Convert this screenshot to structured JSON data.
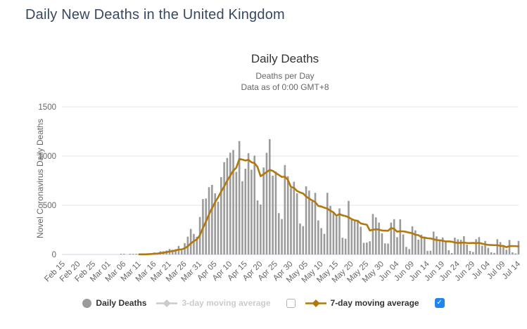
{
  "page": {
    "title": "Daily New Deaths in the United Kingdom"
  },
  "chart": {
    "title": "Daily Deaths",
    "subtitle_line1": "Deaths per Day",
    "subtitle_line2": "Data as of 0:00 GMT+8",
    "y_axis_title": "Novel Coronavirus Daily Deaths"
  },
  "colors": {
    "bar": "#9b9b9b",
    "ma7_line": "#b2770d",
    "disabled_legend": "#cbcbcb",
    "checkbox_checked": "#1f86f0",
    "gridline": "#e6e6e6",
    "axis_line": "#ccd6eb",
    "tick_text": "#666666"
  },
  "legend": {
    "items": [
      {
        "id": "daily-deaths",
        "label": "Daily Deaths",
        "marker": "circle",
        "color": "#9b9b9b",
        "enabled": true,
        "checkbox": "none"
      },
      {
        "id": "ma3",
        "label": "3-day moving average",
        "marker": "line-diamond",
        "color": "#cbcbcb",
        "enabled": false,
        "checkbox": "unchecked"
      },
      {
        "id": "ma7",
        "label": "7-day moving average",
        "marker": "line-diamond",
        "color": "#b2770d",
        "enabled": true,
        "checkbox": "checked"
      }
    ],
    "checkmark_glyph": "✓"
  },
  "chart_data": {
    "type": "bar",
    "title": "Daily Deaths",
    "subtitle": "Deaths per Day — Data as of 0:00 GMT+8",
    "xlabel": "",
    "ylabel": "Novel Coronavirus Daily Deaths",
    "x_start": "Feb 15",
    "x_end": "Jul 14",
    "x_tick_labels": [
      "Feb 15",
      "Feb 20",
      "Feb 25",
      "Mar 01",
      "Mar 06",
      "Mar 11",
      "Mar 16",
      "Mar 21",
      "Mar 26",
      "Mar 31",
      "Apr 05",
      "Apr 10",
      "Apr 15",
      "Apr 20",
      "Apr 25",
      "Apr 30",
      "May 05",
      "May 10",
      "May 15",
      "May 20",
      "May 25",
      "May 30",
      "Jun 04",
      "Jun 09",
      "Jun 14",
      "Jun 19",
      "Jun 24",
      "Jun 29",
      "Jul 04",
      "Jul 09",
      "Jul 14"
    ],
    "x_tick_step_days": 5,
    "y_ticks": [
      0,
      500,
      1000,
      1500
    ],
    "ylim": [
      0,
      1500
    ],
    "grid": true,
    "legend_position": "bottom",
    "series": [
      {
        "name": "Daily Deaths",
        "type": "bar",
        "color": "#9b9b9b",
        "values": [
          0,
          0,
          0,
          0,
          0,
          0,
          0,
          0,
          0,
          0,
          0,
          0,
          0,
          0,
          0,
          0,
          0,
          0,
          0,
          1,
          1,
          0,
          1,
          1,
          3,
          2,
          2,
          1,
          10,
          14,
          20,
          16,
          32,
          33,
          40,
          56,
          48,
          54,
          87,
          41,
          115,
          181,
          260,
          209,
          180,
          381,
          563,
          569,
          684,
          708,
          621,
          536,
          786,
          938,
          981,
          1034,
          1062,
          839,
          1152,
          744,
          872,
          1029,
          861,
          1005,
          549,
          508,
          884,
          1033,
          1172,
          801,
          843,
          420,
          360,
          909,
          795,
          674,
          739,
          621,
          315,
          288,
          693,
          649,
          539,
          626,
          346,
          268,
          210,
          627,
          494,
          428,
          384,
          468,
          170,
          160,
          545,
          363,
          338,
          351,
          282,
          118,
          121,
          134,
          412,
          377,
          324,
          215,
          113,
          111,
          324,
          359,
          176,
          357,
          204,
          77,
          55,
          286,
          245,
          151,
          202,
          181,
          36,
          38,
          233,
          184,
          135,
          173,
          128,
          43,
          15,
          171,
          154,
          149,
          186,
          100,
          36,
          25,
          155,
          176,
          89,
          137,
          67,
          22,
          16,
          155,
          126,
          85,
          48,
          148,
          21,
          11,
          138
        ]
      },
      {
        "name": "7-day moving average",
        "type": "line",
        "color": "#b2770d",
        "derivation": "trailing 7-day mean of Daily Deaths values, drawn from Mar 11 onward"
      },
      {
        "name": "3-day moving average",
        "type": "line",
        "color": "#cbcbcb",
        "hidden": true
      }
    ]
  }
}
